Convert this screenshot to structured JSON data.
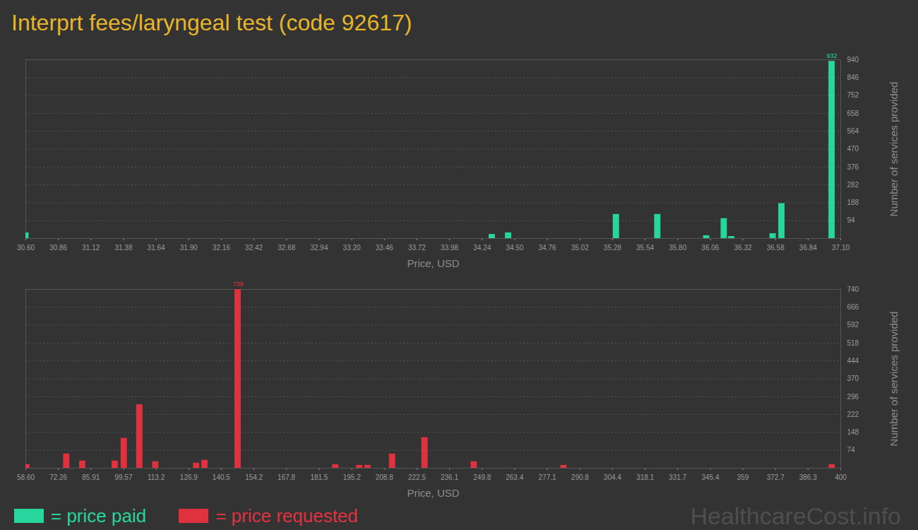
{
  "chart_data": [
    {
      "type": "bar",
      "title": "Interprt fees/laryngeal test (code 92617)",
      "xlabel": "Price, USD",
      "ylabel": "Number of services provided",
      "x": [
        30.6,
        34.32,
        34.45,
        35.31,
        35.64,
        36.03,
        36.17,
        36.23,
        36.56,
        36.63,
        37.03
      ],
      "series": [
        {
          "name": "= price paid",
          "color": "#26d69c",
          "values": [
            30,
            22,
            30,
            127,
            127,
            15,
            105,
            11,
            26,
            184,
            932
          ]
        }
      ],
      "xlim": [
        30.6,
        37.1
      ],
      "xticks": [
        {
          "value": 30.6,
          "label": "30.60"
        },
        30.86,
        31.12,
        31.38,
        31.64,
        {
          "value": 31.9,
          "label": "31.90"
        },
        32.16,
        32.42,
        32.68,
        32.94,
        {
          "value": 33.2,
          "label": "33.20"
        },
        33.46,
        33.72,
        33.98,
        34.24,
        {
          "value": 34.5,
          "label": "34.50"
        },
        34.76,
        35.02,
        35.28,
        35.54,
        {
          "value": 35.8,
          "label": "35.80"
        },
        36.06,
        36.32,
        36.58,
        36.84,
        {
          "value": 37.1,
          "label": "37.10"
        }
      ],
      "ylim": [
        0,
        940
      ],
      "yticks": [
        94,
        188,
        282,
        376,
        470,
        564,
        658,
        752,
        846,
        940
      ],
      "grid": true,
      "annotations": [
        {
          "x": 37.03,
          "y": 932,
          "text": "932"
        }
      ]
    },
    {
      "type": "bar",
      "xlabel": "Price, USD",
      "ylabel": "Number of services provided",
      "x": [
        59,
        75.7,
        82.4,
        96.0,
        99.8,
        106.3,
        113.0,
        130.1,
        133.6,
        147.5,
        188.4,
        198.4,
        201.9,
        212.2,
        225.8,
        246.4,
        284.0,
        396.4
      ],
      "series": [
        {
          "name": "= price requested",
          "color": "#e0313f",
          "values": [
            15,
            59,
            30,
            30,
            124,
            263,
            27,
            21,
            33,
            739,
            15,
            12,
            12,
            59,
            127,
            27,
            12,
            15
          ]
        }
      ],
      "xlim": [
        58.6,
        400
      ],
      "xticks": [
        {
          "value": 58.6,
          "label": "58.60"
        },
        72.26,
        85.91,
        99.57,
        113.2,
        126.9,
        140.5,
        154.2,
        167.8,
        181.5,
        195.2,
        208.8,
        222.5,
        236.1,
        249.8,
        263.4,
        277.1,
        290.8,
        304.4,
        318.1,
        331.7,
        345.4,
        359,
        372.7,
        386.3,
        400
      ],
      "ylim": [
        0,
        740
      ],
      "yticks": [
        74,
        148,
        222,
        296,
        370,
        444,
        518,
        592,
        666,
        740
      ],
      "grid": true,
      "annotations": [
        {
          "x": 147.5,
          "y": 739,
          "text": "739"
        }
      ],
      "caption": "HealthcareCost.info"
    }
  ]
}
